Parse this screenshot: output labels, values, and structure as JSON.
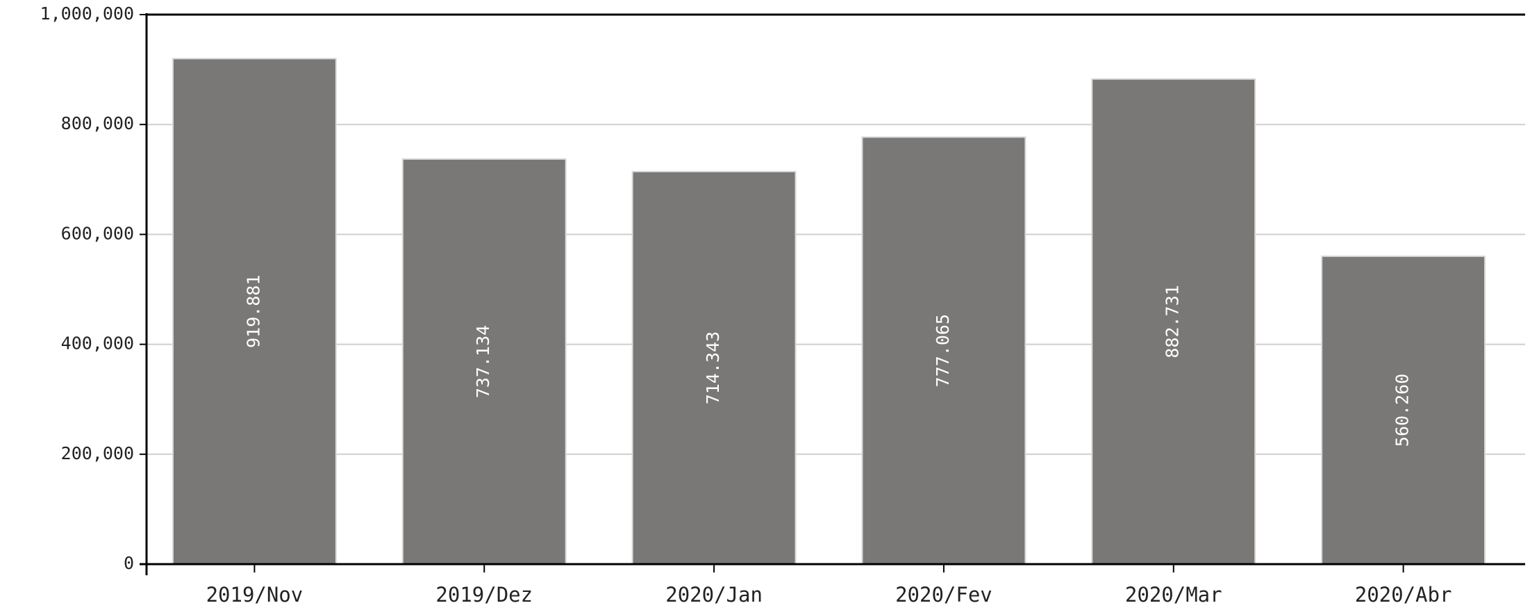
{
  "chart_data": {
    "type": "bar",
    "categories": [
      "2019/Nov",
      "2019/Dez",
      "2020/Jan",
      "2020/Fev",
      "2020/Mar",
      "2020/Abr"
    ],
    "values": [
      919881,
      737134,
      714343,
      777065,
      882731,
      560260
    ],
    "value_labels": [
      "919.881",
      "737.134",
      "714.343",
      "777.065",
      "882.731",
      "560.260"
    ],
    "color": "#7a7876",
    "ylim": [
      0,
      1000000
    ],
    "yticks": [
      0,
      {
        "value": 200000,
        "label": "200,000"
      },
      {
        "value": 400000,
        "label": "400,000"
      },
      {
        "value": 600000,
        "label": "600,000"
      },
      {
        "value": 800000,
        "label": "800,000"
      },
      {
        "value": 1000000,
        "label": "1,000,000"
      }
    ],
    "grid": true
  }
}
